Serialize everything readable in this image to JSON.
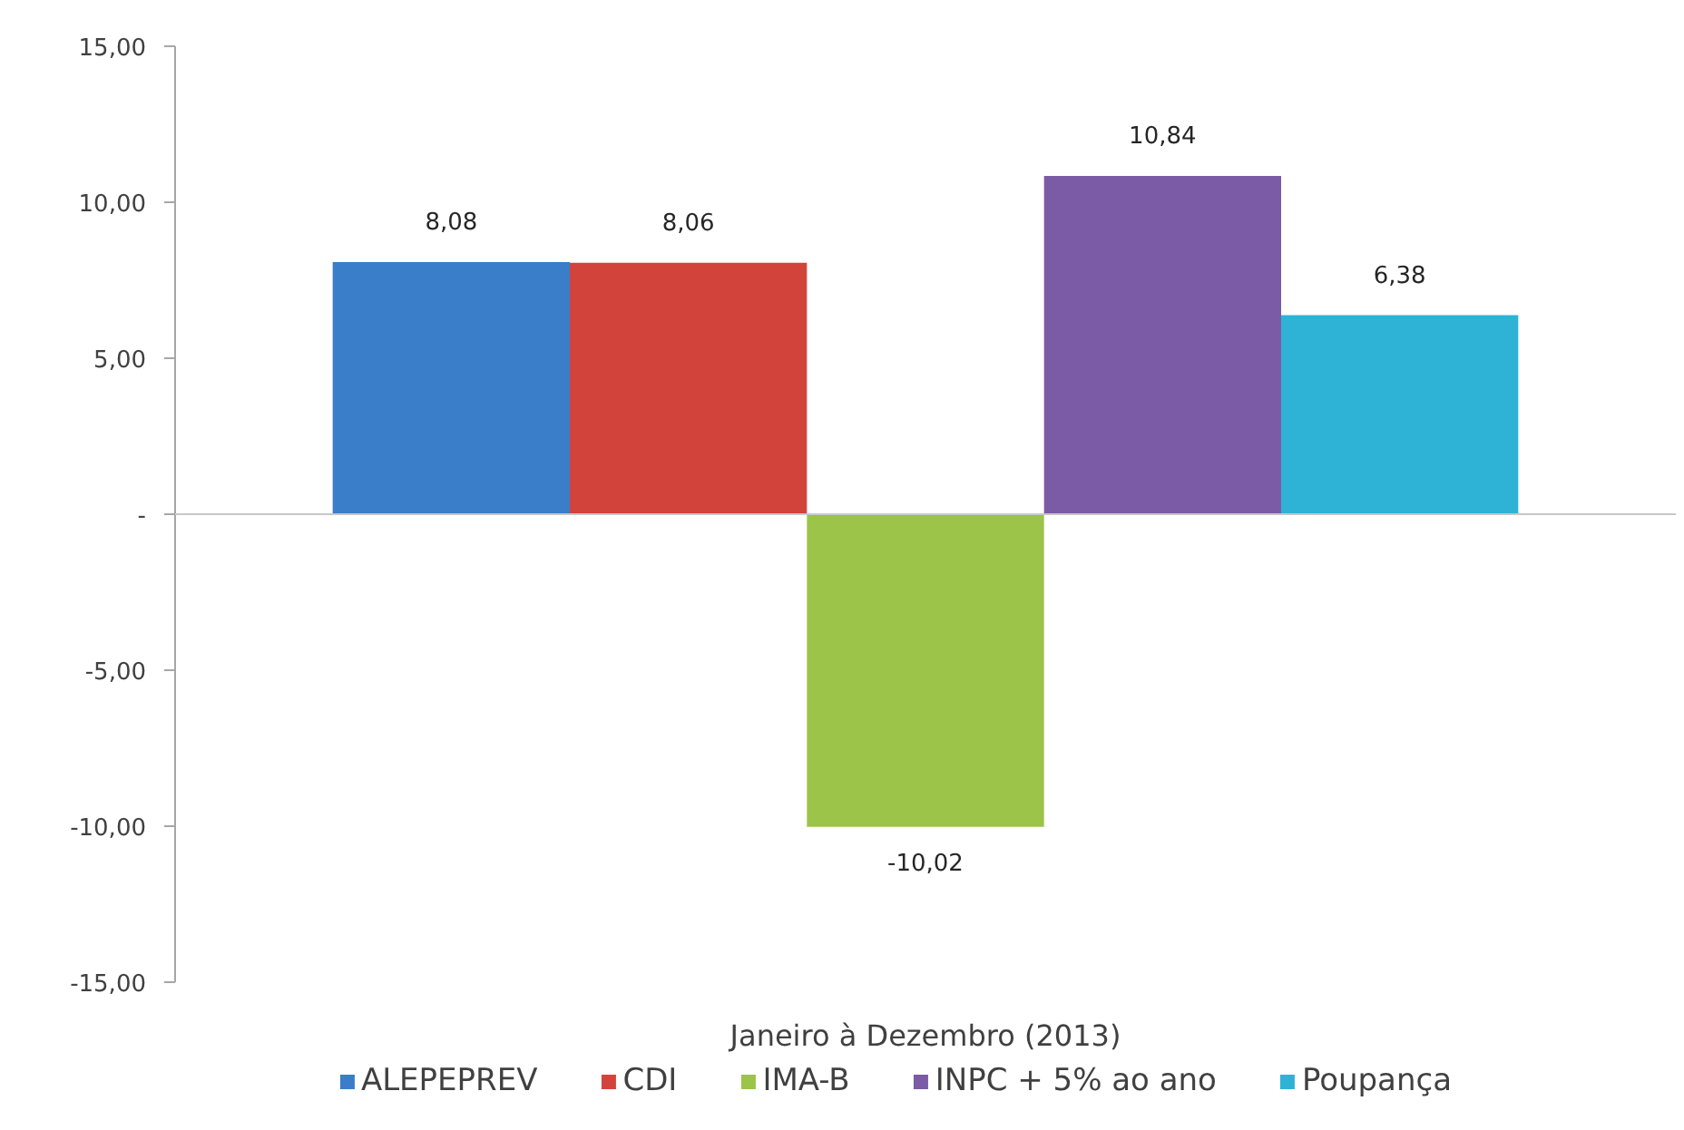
{
  "chart_data": {
    "type": "bar",
    "categories": [
      "Janeiro à Dezembro (2013)"
    ],
    "series": [
      {
        "name": "ALEPEPREV",
        "color": "#3a7dc9",
        "values": [
          8.08
        ],
        "value_labels": [
          "8,08"
        ]
      },
      {
        "name": "CDI",
        "color": "#d2443b",
        "values": [
          8.06
        ],
        "value_labels": [
          "8,06"
        ]
      },
      {
        "name": "IMA-B",
        "color": "#9bc448",
        "values": [
          -10.02
        ],
        "value_labels": [
          "-10,02"
        ]
      },
      {
        "name": "INPC + 5% ao ano",
        "color": "#7b5ba5",
        "values": [
          10.84
        ],
        "value_labels": [
          "10,84"
        ]
      },
      {
        "name": "Poupança",
        "color": "#2eb3d6",
        "values": [
          6.38
        ],
        "value_labels": [
          "6,38"
        ]
      }
    ],
    "ylim": [
      -15,
      15
    ],
    "yticks": [
      {
        "value": -15,
        "label": "-15,00"
      },
      {
        "value": -10,
        "label": "-10,00"
      },
      {
        "value": -5,
        "label": "-5,00"
      },
      {
        "value": 0,
        "label": "-"
      },
      {
        "value": 5,
        "label": "5,00"
      },
      {
        "value": 10,
        "label": "10,00"
      },
      {
        "value": 15,
        "label": "15,00"
      }
    ],
    "ref_lines": [
      {
        "axis": "y",
        "value": 0,
        "color": "#c8c8c8"
      }
    ],
    "grid": false,
    "legend": "bottom"
  }
}
